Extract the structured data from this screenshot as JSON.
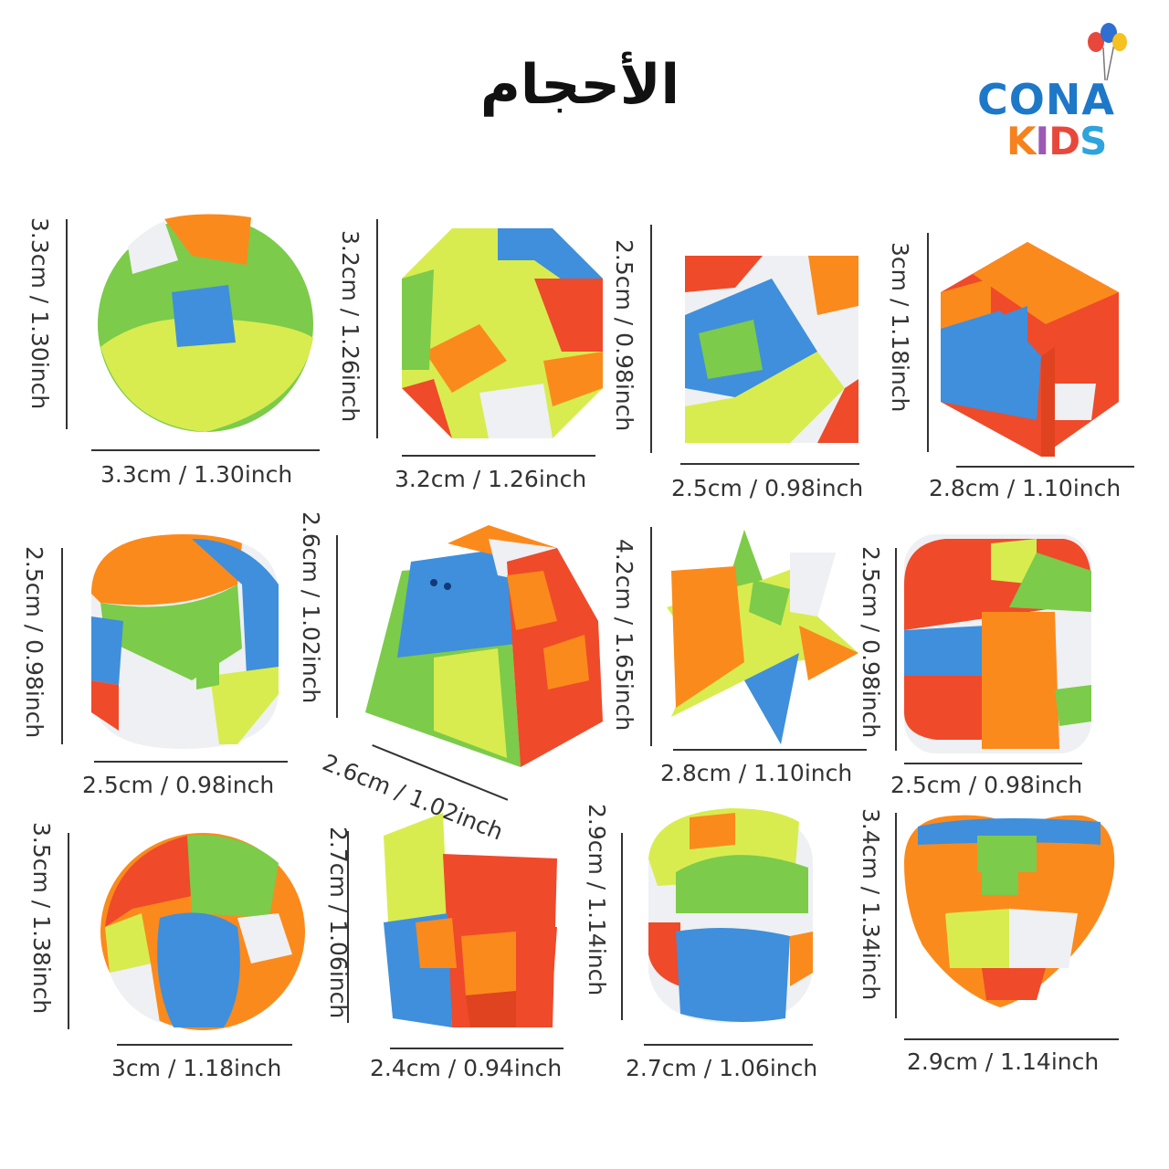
{
  "title": "الأحجام",
  "logo": {
    "line1": "CONA",
    "line2_letters": [
      "K",
      "I",
      "D",
      "S"
    ],
    "line2_colors": [
      "#f5821f",
      "#9b59b6",
      "#e8483b",
      "#2ea3dc"
    ]
  },
  "colors": {
    "green": "#7ccb4a",
    "yellow": "#d8ec50",
    "blue": "#3f8fdc",
    "red": "#ef4a2a",
    "orange": "#fb8a1c",
    "white": "#eef0f3"
  },
  "toys": [
    {
      "name": "sphere",
      "height": "3.3cm / 1.30inch",
      "width": "3.3cm / 1.30inch"
    },
    {
      "name": "octagon-cube",
      "height": "3.2cm / 1.26inch",
      "width": "3.2cm / 1.26inch"
    },
    {
      "name": "octahedron",
      "height": "2.5cm / 0.98inch",
      "width": "2.5cm / 0.98inch"
    },
    {
      "name": "hexagon",
      "height": "3cm / 1.18inch",
      "width": "2.8cm / 1.10inch"
    },
    {
      "name": "cylinder",
      "height": "2.5cm / 0.98inch",
      "width": "2.5cm / 0.98inch"
    },
    {
      "name": "trapezoid",
      "height": "2.6cm / 1.02inch",
      "width": "2.6cm / 1.02inch"
    },
    {
      "name": "star",
      "height": "4.2cm / 1.65inch",
      "width": "2.8cm / 1.10inch"
    },
    {
      "name": "rounded-cube",
      "height": "2.5cm / 0.98inch",
      "width": "2.5cm / 0.98inch"
    },
    {
      "name": "pumpkin",
      "height": "3.5cm / 1.38inch",
      "width": "3cm / 1.18inch"
    },
    {
      "name": "house",
      "height": "2.7cm / 1.06inch",
      "width": "2.4cm / 0.94inch"
    },
    {
      "name": "barrel",
      "height": "2.9cm / 1.14inch",
      "width": "2.7cm / 1.06inch"
    },
    {
      "name": "heart",
      "height": "3.4cm / 1.34inch",
      "width": "2.9cm / 1.14inch"
    }
  ]
}
